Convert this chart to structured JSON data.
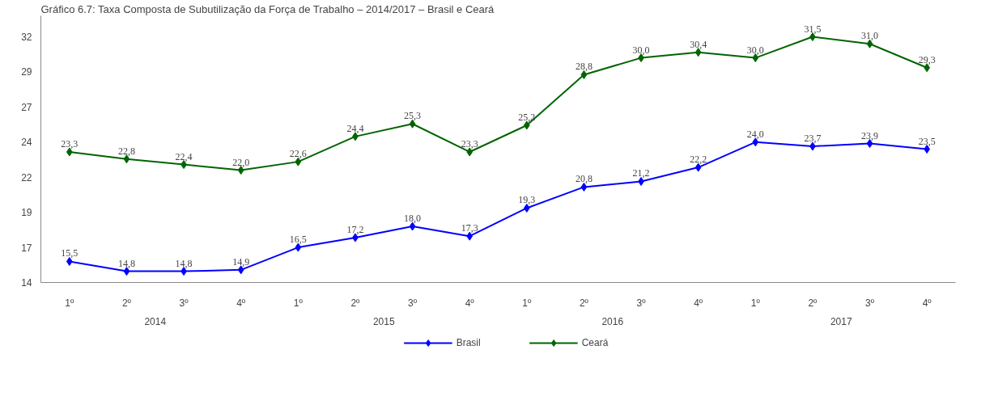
{
  "chart_data": {
    "type": "line",
    "title": "Gráfico 6.7: Taxa Composta de Subutilização da Força de Trabalho – 2014/2017 – Brasil e Ceará",
    "categories": [
      "1º",
      "2º",
      "3º",
      "4º",
      "1º",
      "2º",
      "3º",
      "4º",
      "1º",
      "2º",
      "3º",
      "4º",
      "1º",
      "2º",
      "3º",
      "4º"
    ],
    "annotations": [
      "2014",
      "2015",
      "2016",
      "2017"
    ],
    "series": [
      {
        "name": "Brasil",
        "color": "#0000ff",
        "values": [
          15.5,
          14.8,
          14.8,
          14.9,
          16.5,
          17.2,
          18.0,
          17.3,
          19.3,
          20.8,
          21.2,
          22.2,
          24.0,
          23.7,
          23.9,
          23.5
        ],
        "value_labels": [
          "15,5",
          "14,8",
          "14,8",
          "14,9",
          "16,5",
          "17,2",
          "18,0",
          "17,3",
          "19,3",
          "20,8",
          "21,2",
          "22,2",
          "24,0",
          "23,7",
          "23,9",
          "23,5"
        ]
      },
      {
        "name": "Ceará",
        "color": "#006400",
        "values": [
          23.3,
          22.8,
          22.4,
          22.0,
          22.6,
          24.4,
          25.3,
          23.3,
          25.2,
          28.8,
          30.0,
          30.4,
          30.0,
          31.5,
          31.0,
          29.3
        ],
        "value_labels": [
          "23,3",
          "22,8",
          "22,4",
          "22,0",
          "22,6",
          "24,4",
          "25,3",
          "23,3",
          "25,2",
          "28,8",
          "30,0",
          "30,4",
          "30,0",
          "31,5",
          "31,0",
          "29,3"
        ]
      }
    ],
    "ylim": [
      14,
      33
    ],
    "yticks": [
      14,
      {
        "value": 16.5,
        "label": "17"
      },
      19,
      {
        "value": 21.5,
        "label": "22"
      },
      24,
      {
        "value": 26.5,
        "label": "27"
      },
      29,
      {
        "value": 31.5,
        "label": "32"
      }
    ],
    "marker": "diamond",
    "line_style": "solid",
    "grid": false,
    "legend": "bottom"
  }
}
